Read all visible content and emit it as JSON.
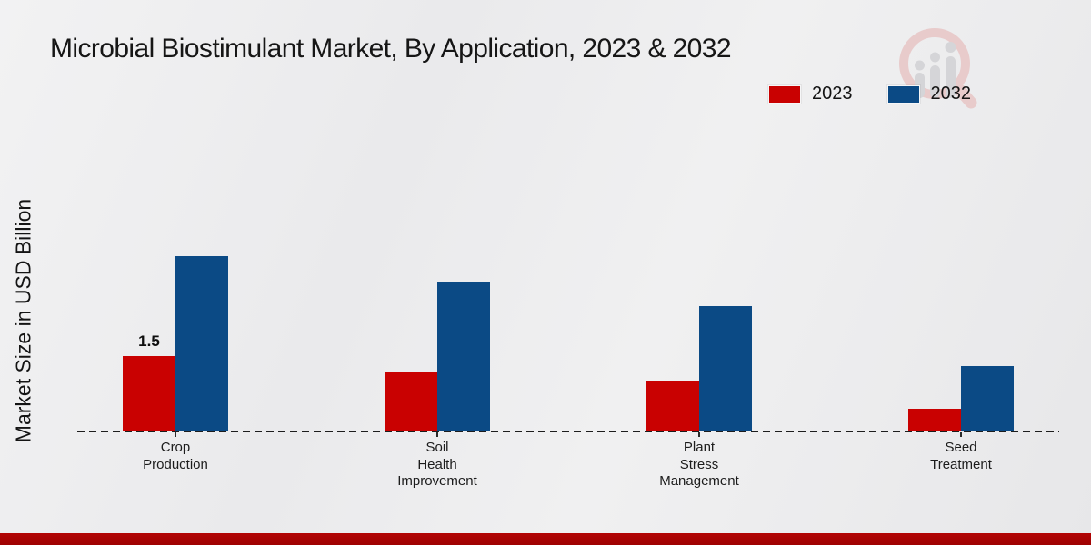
{
  "header": {
    "title": "Microbial Biostimulant Market, By Application, 2023 & 2032"
  },
  "branding": {
    "logo_icon": "magnifier-bar-chart-watermark",
    "ring_color": "#e8cbcb",
    "bars_color": "#d5d5d8"
  },
  "chart_data": {
    "type": "bar",
    "title": "Microbial Biostimulant Market, By Application, 2023 & 2032",
    "ylabel": "Market Size in USD Billion",
    "xlabel": "",
    "categories": [
      "Crop\nProduction",
      "Soil\nHealth\nImprovement",
      "Plant\nStress\nManagement",
      "Seed\nTreatment"
    ],
    "series": [
      {
        "name": "2023",
        "color": "#c90101",
        "values": [
          1.5,
          1.2,
          1.0,
          0.45
        ],
        "value_labels": [
          "1.5",
          "",
          "",
          ""
        ]
      },
      {
        "name": "2032",
        "color": "#0b4a85",
        "values": [
          3.5,
          3.0,
          2.5,
          1.3
        ],
        "value_labels": [
          "",
          "",
          "",
          ""
        ]
      }
    ],
    "ylim": [
      0,
      3.6
    ],
    "grid": false,
    "y_axis_ticks_visible": false,
    "baseline_style": "dashed",
    "legend_position": "top-right"
  },
  "footer": {
    "color": "#b30404"
  }
}
